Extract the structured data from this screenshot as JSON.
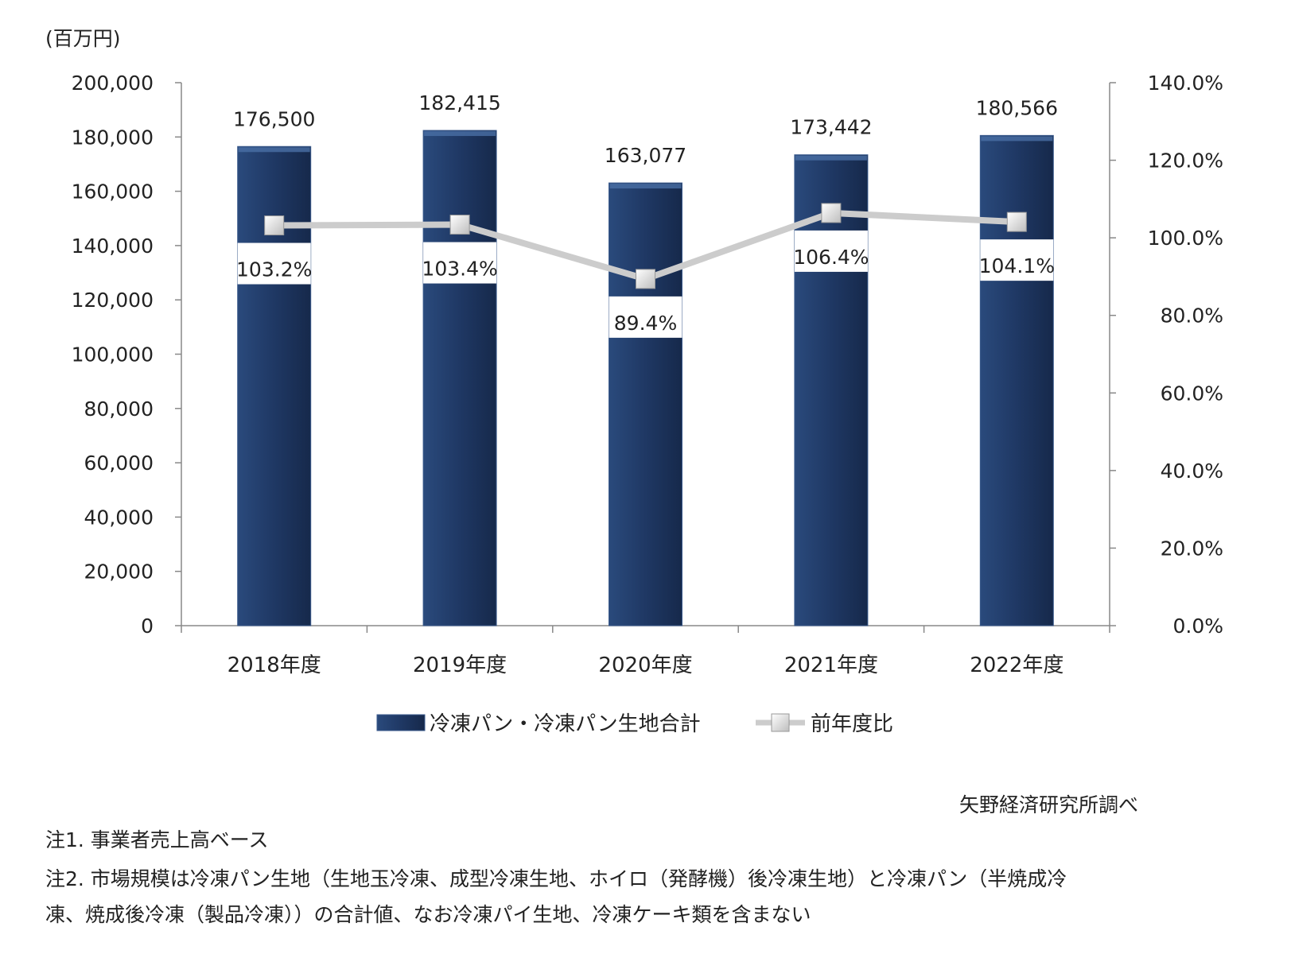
{
  "chart_data": {
    "type": "bar",
    "unit_label": "(百万円)",
    "categories": [
      "2018年度",
      "2019年度",
      "2020年度",
      "2021年度",
      "2022年度"
    ],
    "series": [
      {
        "name": "冷凍パン・冷凍パン生地合計",
        "type": "bar",
        "axis": "left",
        "values": [
          176500,
          182415,
          163077,
          173442,
          180566
        ],
        "labels": [
          "176,500",
          "182,415",
          "163,077",
          "173,442",
          "180,566"
        ],
        "color": "#1f3864"
      },
      {
        "name": "前年度比",
        "type": "line",
        "axis": "right",
        "values": [
          103.2,
          103.4,
          89.4,
          106.4,
          104.1
        ],
        "labels": [
          "103.2%",
          "103.4%",
          "89.4%",
          "106.4%",
          "104.1%"
        ],
        "color": "#cccccc"
      }
    ],
    "y_left": {
      "ylim": [
        0,
        200000
      ],
      "ticks": [
        0,
        20000,
        40000,
        60000,
        80000,
        100000,
        120000,
        140000,
        160000,
        180000,
        200000
      ],
      "tick_labels": [
        "0",
        "20,000",
        "40,000",
        "60,000",
        "80,000",
        "100,000",
        "120,000",
        "140,000",
        "160,000",
        "180,000",
        "200,000"
      ]
    },
    "y_right": {
      "ylim": [
        0,
        140
      ],
      "ticks": [
        0,
        20,
        40,
        60,
        80,
        100,
        120,
        140
      ],
      "tick_labels": [
        "0.0%",
        "20.0%",
        "40.0%",
        "60.0%",
        "80.0%",
        "100.0%",
        "120.0%",
        "140.0%"
      ]
    },
    "grid": false,
    "legend_position": "bottom"
  },
  "source": "矢野経済研究所調べ",
  "notes": [
    "注1. 事業者売上高ベース",
    "注2. 市場規模は冷凍パン生地（生地玉冷凍、成型冷凍生地、ホイロ（発酵機）後冷凍生地）と冷凍パン（半焼成冷",
    "凍、焼成後冷凍（製品冷凍））の合計値、なお冷凍パイ生地、冷凍ケーキ類を含まない"
  ]
}
